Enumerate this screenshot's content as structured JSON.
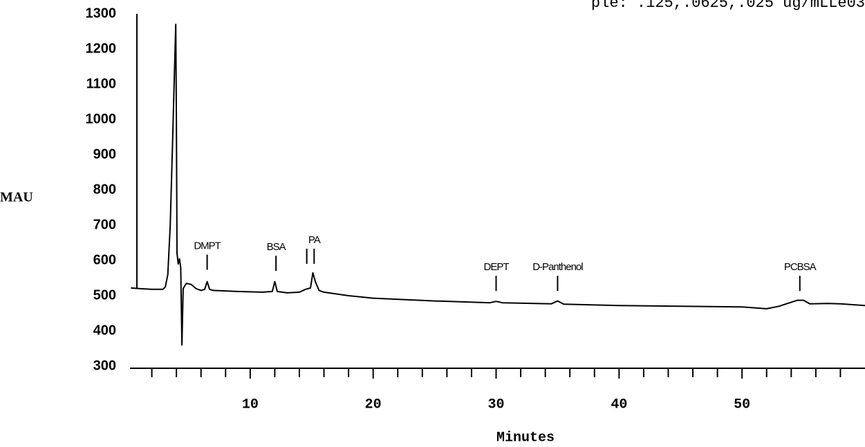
{
  "chart_data": {
    "type": "line",
    "title": "ple: .125,.0625,.025 ug/mLLe03",
    "xlabel": "Minutes",
    "ylabel": "MAU",
    "color": "#000000",
    "x": [
      0.3,
      1,
      2,
      2.9,
      3.1,
      3.3,
      3.5,
      3.7,
      3.85,
      3.95,
      4.0,
      4.05,
      4.15,
      4.25,
      4.35,
      4.45,
      4.55,
      4.8,
      5.2,
      5.6,
      6.0,
      6.3,
      6.5,
      6.7,
      7,
      9,
      11,
      11.8,
      12.0,
      12.2,
      13,
      14,
      14.5,
      14.7,
      14.9,
      15.1,
      15.3,
      15.6,
      16,
      18,
      20,
      25,
      29.5,
      30,
      30.5,
      34.5,
      35,
      35.5,
      40,
      45,
      50,
      52,
      53,
      54.5,
      55,
      55.5,
      57,
      58,
      60
    ],
    "values": [
      522,
      520,
      518,
      518,
      525,
      560,
      700,
      950,
      1150,
      1270,
      1000,
      620,
      590,
      605,
      580,
      360,
      520,
      535,
      532,
      520,
      515,
      518,
      540,
      518,
      515,
      512,
      510,
      512,
      540,
      512,
      508,
      510,
      518,
      520,
      522,
      565,
      540,
      515,
      510,
      500,
      493,
      485,
      480,
      484,
      480,
      477,
      485,
      476,
      472,
      470,
      468,
      463,
      470,
      487,
      487,
      477,
      478,
      477,
      472
    ],
    "xlim": [
      0,
      60
    ],
    "ylim": [
      300,
      1300
    ],
    "xticks": [
      10,
      20,
      30,
      40,
      50
    ],
    "xminorticks": [
      2,
      4,
      6,
      8,
      12,
      14,
      16,
      18,
      22,
      24,
      26,
      28,
      32,
      34,
      36,
      38,
      42,
      44,
      46,
      48,
      52,
      54,
      56,
      58
    ],
    "yticks": [
      300,
      400,
      500,
      600,
      700,
      800,
      900,
      1000,
      1100,
      1200,
      1300
    ],
    "annotations": [
      {
        "text": "DMPT",
        "x": 6.5,
        "y": 640,
        "markers": [
          6.5
        ]
      },
      {
        "text": "BSA",
        "x": 12.1,
        "y": 637,
        "markers": [
          12.1
        ]
      },
      {
        "text": "PA",
        "x": 15.2,
        "y": 657,
        "markers": [
          14.6,
          15.2
        ]
      },
      {
        "text": "DEPT",
        "x": 30.0,
        "y": 580,
        "markers": [
          30.0
        ]
      },
      {
        "text": "D-Panthenol",
        "x": 35.0,
        "y": 580,
        "markers": [
          35.0
        ]
      },
      {
        "text": "PCBSA",
        "x": 54.7,
        "y": 580,
        "markers": [
          54.7
        ]
      }
    ]
  }
}
